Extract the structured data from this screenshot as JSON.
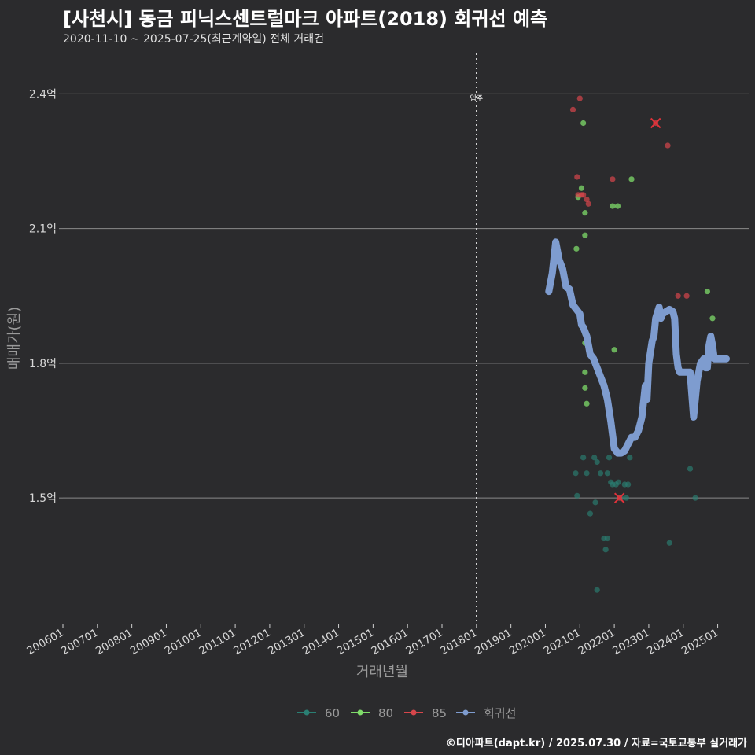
{
  "header": {
    "title": "[사천시] 동금 피닉스센트럴마크 아파트(2018) 회귀선 예측",
    "subtitle": "2020-11-10 ~ 2025-07-25(최근계약일) 전체 거래건"
  },
  "footer": {
    "credit": "©디아파트(dapt.kr) / 2025.07.30 / 자료=국토교통부 실거래가"
  },
  "colors": {
    "s60": "#2a7f73",
    "s80": "#7fdc6a",
    "s85": "#d7464b",
    "fit": "#7e9ccf",
    "grid": "#8a8a8a",
    "bg": "#2b2b2d"
  },
  "chart_data": {
    "type": "scatter",
    "title": "[사천시] 동금 피닉스센트럴마크 아파트(2018) 회귀선 예측",
    "xlabel": "거래년월",
    "ylabel": "매매가(원)",
    "xlim": [
      "2006-01",
      "2025-12"
    ],
    "ylim": [
      1.22,
      2.49
    ],
    "x_ticks": [
      "200601",
      "200701",
      "200801",
      "200901",
      "201001",
      "201101",
      "201201",
      "201301",
      "201401",
      "201501",
      "201601",
      "201701",
      "201801",
      "201901",
      "202001",
      "202101",
      "202201",
      "202301",
      "202401",
      "202501"
    ],
    "y_ticks": [
      {
        "value": 1.5,
        "label": "1.5억"
      },
      {
        "value": 1.8,
        "label": "1.8억"
      },
      {
        "value": 2.1,
        "label": "2.1억"
      },
      {
        "value": 2.4,
        "label": "2.4억"
      }
    ],
    "vline": {
      "x": 2018.0,
      "label": "입주"
    },
    "legend": {
      "position": "bottom",
      "items": [
        {
          "name": "60",
          "color": "#2a7f73"
        },
        {
          "name": "80",
          "color": "#7fdc6a"
        },
        {
          "name": "85",
          "color": "#d7464b"
        },
        {
          "name": "회귀선",
          "color": "#7e9ccf"
        }
      ]
    },
    "series": [
      {
        "name": "60",
        "points": [
          [
            2020.88,
            1.555
          ],
          [
            2020.92,
            1.505
          ],
          [
            2021.1,
            1.59
          ],
          [
            2021.2,
            1.555
          ],
          [
            2021.3,
            1.465
          ],
          [
            2021.42,
            1.59
          ],
          [
            2021.45,
            1.49
          ],
          [
            2021.5,
            1.58
          ],
          [
            2021.5,
            1.295
          ],
          [
            2021.6,
            1.555
          ],
          [
            2021.7,
            1.41
          ],
          [
            2021.75,
            1.385
          ],
          [
            2021.8,
            1.41
          ],
          [
            2021.8,
            1.555
          ],
          [
            2021.85,
            1.59
          ],
          [
            2021.9,
            1.535
          ],
          [
            2021.95,
            1.53
          ],
          [
            2022.05,
            1.53
          ],
          [
            2022.12,
            1.535
          ],
          [
            2022.2,
            1.5
          ],
          [
            2022.3,
            1.53
          ],
          [
            2022.35,
            1.5
          ],
          [
            2022.4,
            1.53
          ],
          [
            2022.45,
            1.59
          ],
          [
            2023.6,
            1.4
          ],
          [
            2024.2,
            1.565
          ],
          [
            2024.35,
            1.5
          ]
        ]
      },
      {
        "name": "80",
        "points": [
          [
            2020.9,
            2.055
          ],
          [
            2020.95,
            2.17
          ],
          [
            2021.05,
            2.19
          ],
          [
            2021.1,
            2.335
          ],
          [
            2021.15,
            2.135
          ],
          [
            2021.15,
            2.085
          ],
          [
            2021.15,
            1.865
          ],
          [
            2021.15,
            1.845
          ],
          [
            2021.15,
            1.78
          ],
          [
            2021.15,
            1.745
          ],
          [
            2021.2,
            1.71
          ],
          [
            2021.95,
            2.15
          ],
          [
            2022.0,
            1.83
          ],
          [
            2022.1,
            2.15
          ],
          [
            2022.5,
            2.21
          ],
          [
            2024.7,
            1.96
          ],
          [
            2024.85,
            1.9
          ]
        ]
      },
      {
        "name": "85",
        "points": [
          [
            2020.8,
            2.365
          ],
          [
            2020.92,
            2.215
          ],
          [
            2020.95,
            2.175
          ],
          [
            2021.0,
            2.39
          ],
          [
            2021.05,
            2.175
          ],
          [
            2021.1,
            2.175
          ],
          [
            2021.2,
            2.165
          ],
          [
            2021.25,
            2.155
          ],
          [
            2021.95,
            2.21
          ],
          [
            2022.15,
            1.5
          ],
          [
            2023.2,
            2.335
          ],
          [
            2023.55,
            2.285
          ],
          [
            2023.85,
            1.95
          ],
          [
            2024.1,
            1.95
          ]
        ]
      },
      {
        "name": "회귀선",
        "points": [
          [
            2020.1,
            1.96
          ],
          [
            2020.2,
            2.0
          ],
          [
            2020.3,
            2.07
          ],
          [
            2020.4,
            2.03
          ],
          [
            2020.5,
            2.01
          ],
          [
            2020.6,
            1.97
          ],
          [
            2020.7,
            1.965
          ],
          [
            2020.8,
            1.93
          ],
          [
            2020.9,
            1.92
          ],
          [
            2021.0,
            1.91
          ],
          [
            2021.05,
            1.885
          ],
          [
            2021.1,
            1.88
          ],
          [
            2021.2,
            1.86
          ],
          [
            2021.3,
            1.82
          ],
          [
            2021.4,
            1.81
          ],
          [
            2021.5,
            1.79
          ],
          [
            2021.6,
            1.77
          ],
          [
            2021.7,
            1.75
          ],
          [
            2021.8,
            1.72
          ],
          [
            2021.9,
            1.67
          ],
          [
            2022.0,
            1.61
          ],
          [
            2022.1,
            1.6
          ],
          [
            2022.2,
            1.6
          ],
          [
            2022.3,
            1.605
          ],
          [
            2022.4,
            1.62
          ],
          [
            2022.5,
            1.635
          ],
          [
            2022.6,
            1.635
          ],
          [
            2022.7,
            1.65
          ],
          [
            2022.8,
            1.68
          ],
          [
            2022.9,
            1.75
          ],
          [
            2022.95,
            1.72
          ],
          [
            2023.0,
            1.8
          ],
          [
            2023.1,
            1.85
          ],
          [
            2023.15,
            1.86
          ],
          [
            2023.2,
            1.9
          ],
          [
            2023.3,
            1.925
          ],
          [
            2023.35,
            1.9
          ],
          [
            2023.4,
            1.91
          ],
          [
            2023.5,
            1.915
          ],
          [
            2023.6,
            1.92
          ],
          [
            2023.7,
            1.915
          ],
          [
            2023.75,
            1.9
          ],
          [
            2023.8,
            1.82
          ],
          [
            2023.85,
            1.79
          ],
          [
            2023.9,
            1.78
          ],
          [
            2024.0,
            1.78
          ],
          [
            2024.1,
            1.78
          ],
          [
            2024.2,
            1.78
          ],
          [
            2024.25,
            1.73
          ],
          [
            2024.3,
            1.68
          ],
          [
            2024.4,
            1.76
          ],
          [
            2024.5,
            1.8
          ],
          [
            2024.6,
            1.81
          ],
          [
            2024.65,
            1.79
          ],
          [
            2024.7,
            1.79
          ],
          [
            2024.75,
            1.84
          ],
          [
            2024.8,
            1.86
          ],
          [
            2024.85,
            1.84
          ],
          [
            2024.9,
            1.81
          ],
          [
            2025.0,
            1.81
          ],
          [
            2025.2,
            1.81
          ],
          [
            2025.25,
            1.81
          ]
        ]
      }
    ],
    "highlights": [
      [
        2022.15,
        1.5
      ],
      [
        2023.2,
        2.335
      ]
    ]
  }
}
